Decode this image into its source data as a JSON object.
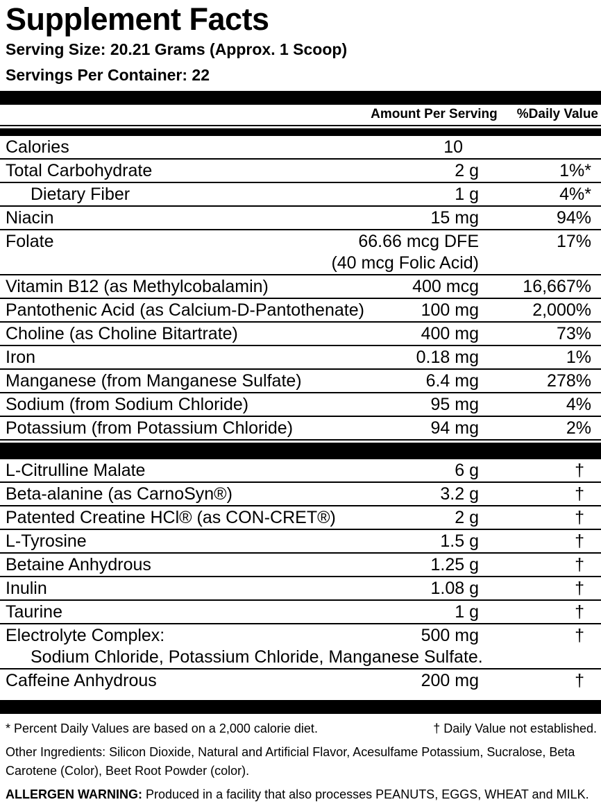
{
  "label": {
    "title": "Supplement Facts",
    "serving_size": "Serving Size: 20.21 Grams (Approx. 1 Scoop)",
    "servings_per_container": "Servings Per Container: 22",
    "columns": {
      "amount": "Amount Per Serving",
      "daily_value": "%Daily Value"
    },
    "rows_main": [
      {
        "name": "Calories",
        "amount": "10",
        "dv": "",
        "pad_amount": true
      },
      {
        "name": "Total Carbohydrate",
        "amount": "2 g",
        "dv": "1%*"
      },
      {
        "name": "Dietary Fiber",
        "amount": "1 g",
        "dv": "4%*",
        "indent": true
      },
      {
        "name": "Niacin",
        "amount": "15 mg",
        "dv": "94%"
      },
      {
        "name": "Folate",
        "amount": "66.66 mcg DFE",
        "dv": "17%",
        "subline_right": "(40 mcg Folic Acid)"
      },
      {
        "name": "Vitamin B12 (as Methylcobalamin)",
        "amount": "400 mcg",
        "dv": "16,667%"
      },
      {
        "name": "Pantothenic Acid (as Calcium-D-Pantothenate)",
        "amount": "100 mg",
        "dv": "2,000%"
      },
      {
        "name": "Choline (as Choline Bitartrate)",
        "amount": "400 mg",
        "dv": "73%"
      },
      {
        "name": "Iron",
        "amount": "0.18 mg",
        "dv": "1%"
      },
      {
        "name": "Manganese (from Manganese Sulfate)",
        "amount": "6.4 mg",
        "dv": "278%"
      },
      {
        "name": "Sodium (from Sodium Chloride)",
        "amount": "95 mg",
        "dv": "4%"
      },
      {
        "name": "Potassium  (from Potassium Chloride)",
        "amount": "94 mg",
        "dv": "2%"
      }
    ],
    "rows_blend": [
      {
        "name": "L-Citrulline Malate",
        "amount": "6 g",
        "dv": "†"
      },
      {
        "name": "Beta-alanine (as CarnoSyn®)",
        "amount": "3.2 g",
        "dv": "†"
      },
      {
        "name": "Patented Creatine HCl® (as CON-CRET®)",
        "amount": "2 g",
        "dv": "†"
      },
      {
        "name": "L-Tyrosine",
        "amount": "1.5 g",
        "dv": "†"
      },
      {
        "name": "Betaine Anhydrous",
        "amount": "1.25 g",
        "dv": "†"
      },
      {
        "name": "Inulin",
        "amount": "1.08 g",
        "dv": "†"
      },
      {
        "name": "Taurine",
        "amount": "1 g",
        "dv": "†"
      },
      {
        "name": "Electrolyte Complex:",
        "amount": "500 mg",
        "dv": "†",
        "subline_left": "Sodium Chloride, Potassium Chloride, Manganese Sulfate."
      },
      {
        "name": "Caffeine Anhydrous",
        "amount": "200 mg",
        "dv": "†",
        "last": true
      }
    ],
    "footnotes": {
      "percent": "* Percent Daily Values are based on a 2,000 calorie diet.",
      "dagger": "† Daily Value not established."
    },
    "other_ingredients": "Other Ingredients: Silicon Dioxide, Natural and Artificial Flavor, Acesulfame Potassium, Sucralose, Beta Carotene (Color), Beet Root Powder (color).",
    "allergen": {
      "label": "ALLERGEN WARNING:",
      "text": " Produced in a facility that also processes PEANUTS, EGGS, WHEAT and MILK."
    },
    "colors": {
      "ink": "#000000",
      "background": "#ffffff"
    }
  }
}
